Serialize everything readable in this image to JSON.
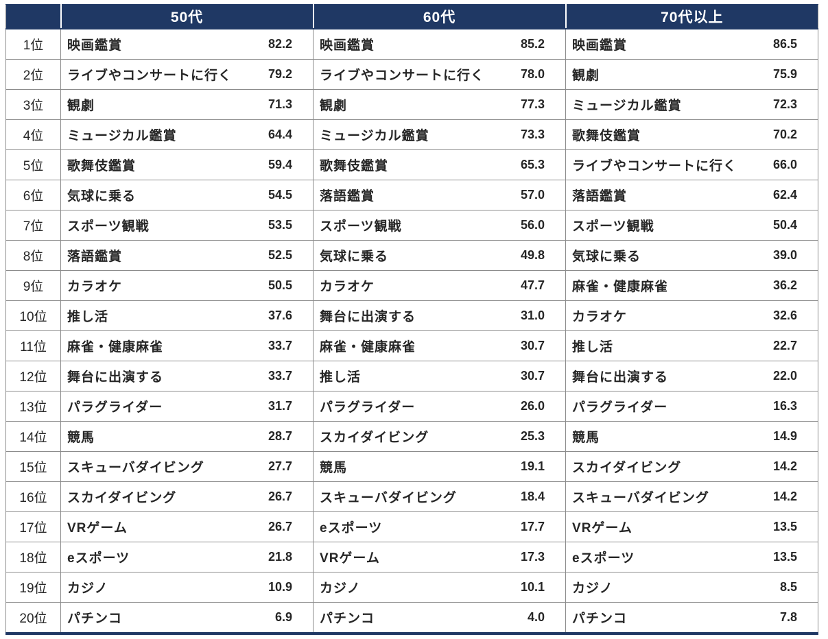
{
  "colors": {
    "header_bg": "#1f3864",
    "header_text": "#ffffff",
    "grid_border": "#8c8c8c",
    "body_text": "#262626",
    "bottom_rule": "#1f3864"
  },
  "chart_data": {
    "type": "table",
    "title": "",
    "columns": [
      "50代",
      "60代",
      "70代以上"
    ],
    "value_unit": "%",
    "rows": [
      {
        "rank": "1位",
        "items": [
          {
            "name": "映画鑑賞",
            "value": "82.2"
          },
          {
            "name": "映画鑑賞",
            "value": "85.2"
          },
          {
            "name": "映画鑑賞",
            "value": "86.5"
          }
        ]
      },
      {
        "rank": "2位",
        "items": [
          {
            "name": "ライブやコンサートに行く",
            "value": "79.2"
          },
          {
            "name": "ライブやコンサートに行く",
            "value": "78.0"
          },
          {
            "name": "観劇",
            "value": "75.9"
          }
        ]
      },
      {
        "rank": "3位",
        "items": [
          {
            "name": "観劇",
            "value": "71.3"
          },
          {
            "name": "観劇",
            "value": "77.3"
          },
          {
            "name": "ミュージカル鑑賞",
            "value": "72.3"
          }
        ]
      },
      {
        "rank": "4位",
        "items": [
          {
            "name": "ミュージカル鑑賞",
            "value": "64.4"
          },
          {
            "name": "ミュージカル鑑賞",
            "value": "73.3"
          },
          {
            "name": "歌舞伎鑑賞",
            "value": "70.2"
          }
        ]
      },
      {
        "rank": "5位",
        "items": [
          {
            "name": "歌舞伎鑑賞",
            "value": "59.4"
          },
          {
            "name": "歌舞伎鑑賞",
            "value": "65.3"
          },
          {
            "name": "ライブやコンサートに行く",
            "value": "66.0"
          }
        ]
      },
      {
        "rank": "6位",
        "items": [
          {
            "name": "気球に乗る",
            "value": "54.5"
          },
          {
            "name": "落語鑑賞",
            "value": "57.0"
          },
          {
            "name": "落語鑑賞",
            "value": "62.4"
          }
        ]
      },
      {
        "rank": "7位",
        "items": [
          {
            "name": "スポーツ観戦",
            "value": "53.5"
          },
          {
            "name": "スポーツ観戦",
            "value": "56.0"
          },
          {
            "name": "スポーツ観戦",
            "value": "50.4"
          }
        ]
      },
      {
        "rank": "8位",
        "items": [
          {
            "name": "落語鑑賞",
            "value": "52.5"
          },
          {
            "name": "気球に乗る",
            "value": "49.8"
          },
          {
            "name": "気球に乗る",
            "value": "39.0"
          }
        ]
      },
      {
        "rank": "9位",
        "items": [
          {
            "name": "カラオケ",
            "value": "50.5"
          },
          {
            "name": "カラオケ",
            "value": "47.7"
          },
          {
            "name": "麻雀・健康麻雀",
            "value": "36.2"
          }
        ]
      },
      {
        "rank": "10位",
        "items": [
          {
            "name": "推し活",
            "value": "37.6"
          },
          {
            "name": "舞台に出演する",
            "value": "31.0"
          },
          {
            "name": "カラオケ",
            "value": "32.6"
          }
        ]
      },
      {
        "rank": "11位",
        "items": [
          {
            "name": "麻雀・健康麻雀",
            "value": "33.7"
          },
          {
            "name": "麻雀・健康麻雀",
            "value": "30.7"
          },
          {
            "name": "推し活",
            "value": "22.7"
          }
        ]
      },
      {
        "rank": "12位",
        "items": [
          {
            "name": "舞台に出演する",
            "value": "33.7"
          },
          {
            "name": "推し活",
            "value": "30.7"
          },
          {
            "name": "舞台に出演する",
            "value": "22.0"
          }
        ]
      },
      {
        "rank": "13位",
        "items": [
          {
            "name": "パラグライダー",
            "value": "31.7"
          },
          {
            "name": "パラグライダー",
            "value": "26.0"
          },
          {
            "name": "パラグライダー",
            "value": "16.3"
          }
        ]
      },
      {
        "rank": "14位",
        "items": [
          {
            "name": "競馬",
            "value": "28.7"
          },
          {
            "name": "スカイダイビング",
            "value": "25.3"
          },
          {
            "name": "競馬",
            "value": "14.9"
          }
        ]
      },
      {
        "rank": "15位",
        "items": [
          {
            "name": "スキューバダイビング",
            "value": "27.7"
          },
          {
            "name": "競馬",
            "value": "19.1"
          },
          {
            "name": "スカイダイビング",
            "value": "14.2"
          }
        ]
      },
      {
        "rank": "16位",
        "items": [
          {
            "name": "スカイダイビング",
            "value": "26.7"
          },
          {
            "name": "スキューバダイビング",
            "value": "18.4"
          },
          {
            "name": "スキューバダイビング",
            "value": "14.2"
          }
        ]
      },
      {
        "rank": "17位",
        "items": [
          {
            "name": "VRゲーム",
            "value": "26.7"
          },
          {
            "name": "eスポーツ",
            "value": "17.7"
          },
          {
            "name": "VRゲーム",
            "value": "13.5"
          }
        ]
      },
      {
        "rank": "18位",
        "items": [
          {
            "name": "eスポーツ",
            "value": "21.8"
          },
          {
            "name": "VRゲーム",
            "value": "17.3"
          },
          {
            "name": "eスポーツ",
            "value": "13.5"
          }
        ]
      },
      {
        "rank": "19位",
        "items": [
          {
            "name": "カジノ",
            "value": "10.9"
          },
          {
            "name": "カジノ",
            "value": "10.1"
          },
          {
            "name": "カジノ",
            "value": "8.5"
          }
        ]
      },
      {
        "rank": "20位",
        "items": [
          {
            "name": "パチンコ",
            "value": "6.9"
          },
          {
            "name": "パチンコ",
            "value": "4.0"
          },
          {
            "name": "パチンコ",
            "value": "7.8"
          }
        ]
      }
    ]
  }
}
